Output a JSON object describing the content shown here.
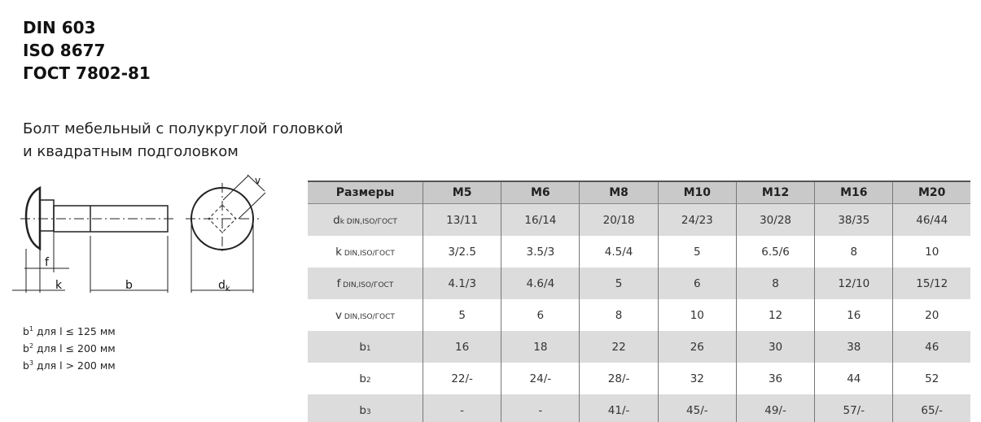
{
  "standards": [
    "DIN 603",
    "ISO 8677",
    "ГОСТ 7802-81"
  ],
  "description": [
    "Болт мебельный с полукруглой головкой",
    "и квадратным подголовком"
  ],
  "drawing_labels": {
    "f": "f",
    "k": "k",
    "b": "b",
    "dk": "d",
    "dk_sub": "k",
    "v": "v"
  },
  "notes": [
    {
      "b": "b",
      "sup": "1",
      "text": " для l ≤ 125 мм"
    },
    {
      "b": "b",
      "sup": "2",
      "text": " для l ≤ 200 мм"
    },
    {
      "b": "b",
      "sup": "3",
      "text": " для l > 200 мм"
    }
  ],
  "table": {
    "headers": [
      "Размеры",
      "M5",
      "M6",
      "M8",
      "M10",
      "M12",
      "M16",
      "M20"
    ],
    "rows": [
      {
        "label": "d",
        "sub": "k DIN,ISO/ГОСТ",
        "values": [
          "13/11",
          "16/14",
          "20/18",
          "24/23",
          "30/28",
          "38/35",
          "46/44"
        ]
      },
      {
        "label": "k",
        "sub": " DIN,ISO/ГОСТ",
        "values": [
          "3/2.5",
          "3.5/3",
          "4.5/4",
          "5",
          "6.5/6",
          "8",
          "10"
        ]
      },
      {
        "label": "f",
        "sub": " DIN,ISO/ГОСТ",
        "values": [
          "4.1/3",
          "4.6/4",
          "5",
          "6",
          "8",
          "12/10",
          "15/12"
        ]
      },
      {
        "label": "v",
        "sub": " DIN,ISO/ГОСТ",
        "values": [
          "5",
          "6",
          "8",
          "10",
          "12",
          "16",
          "20"
        ]
      },
      {
        "label": "b",
        "sub": "1",
        "values": [
          "16",
          "18",
          "22",
          "26",
          "30",
          "38",
          "46"
        ]
      },
      {
        "label": "b",
        "sub": "2",
        "values": [
          "22/-",
          "24/-",
          "28/-",
          "32",
          "36",
          "44",
          "52"
        ]
      },
      {
        "label": "b",
        "sub": "3",
        "values": [
          "-",
          "-",
          "41/-",
          "45/-",
          "49/-",
          "57/-",
          "65/-"
        ]
      }
    ]
  }
}
